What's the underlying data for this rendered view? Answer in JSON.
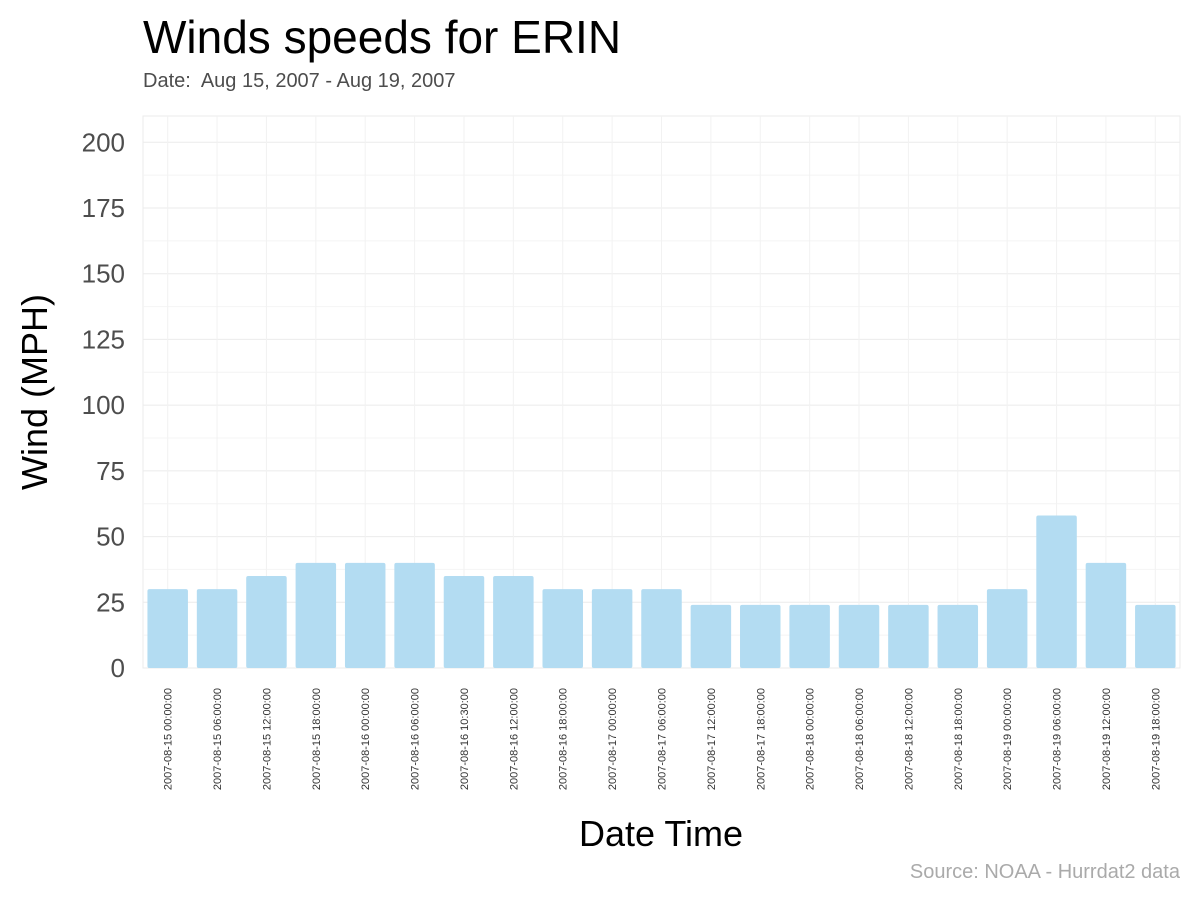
{
  "chart_data": {
    "type": "bar",
    "title": "Winds speeds for ERIN",
    "subtitle": "Date:  Aug 15, 2007 - Aug 19, 2007",
    "xlabel": "Date Time",
    "ylabel": "Wind (MPH)",
    "caption": "Source: NOAA - Hurrdat2 data",
    "ylim": [
      0,
      210
    ],
    "yticks": [
      0,
      25,
      50,
      75,
      100,
      125,
      150,
      175,
      200
    ],
    "grid": true,
    "bar_color": "#b3dcf2",
    "categories": [
      "2007-08-15 00:00:00",
      "2007-08-15 06:00:00",
      "2007-08-15 12:00:00",
      "2007-08-15 18:00:00",
      "2007-08-16 00:00:00",
      "2007-08-16 06:00:00",
      "2007-08-16 10:30:00",
      "2007-08-16 12:00:00",
      "2007-08-16 18:00:00",
      "2007-08-17 00:00:00",
      "2007-08-17 06:00:00",
      "2007-08-17 12:00:00",
      "2007-08-17 18:00:00",
      "2007-08-18 00:00:00",
      "2007-08-18 06:00:00",
      "2007-08-18 12:00:00",
      "2007-08-18 18:00:00",
      "2007-08-19 00:00:00",
      "2007-08-19 06:00:00",
      "2007-08-19 12:00:00",
      "2007-08-19 18:00:00"
    ],
    "values": [
      30,
      30,
      35,
      40,
      40,
      40,
      35,
      35,
      30,
      30,
      30,
      24,
      24,
      24,
      24,
      24,
      24,
      30,
      58,
      40,
      24
    ]
  }
}
